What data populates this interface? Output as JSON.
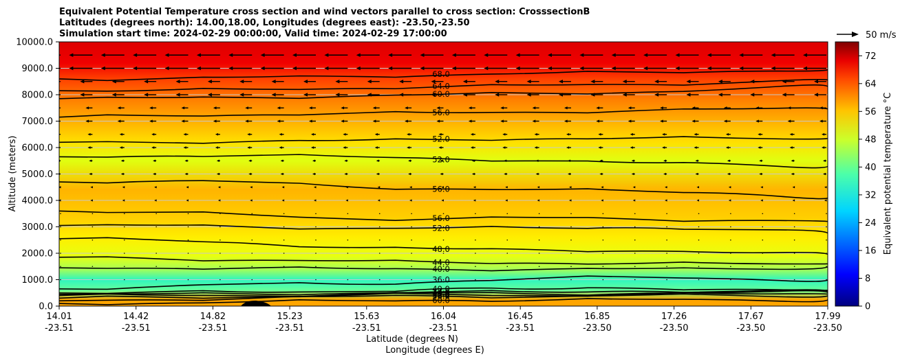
{
  "title_lines": [
    "Equivalent Potential Temperature cross section and wind vectors parallel to cross section: CrosssectionB",
    "Latitudes (degrees north): 14.00,18.00, Longitudes (degrees east): -23.50,-23.50",
    "Simulation start time: 2024-02-29 00:00:00, Valid time: 2024-02-29 17:00:00"
  ],
  "quiver_key_label": "50 m/s",
  "chart_data": {
    "type": "heatmap",
    "title": "Equivalent Potential Temperature cross section and wind vectors parallel to cross section: CrosssectionB",
    "xlabel": "Latitude (degrees N)",
    "xlabel2": "Longitude (degrees E)",
    "ylabel": "Altitude (meters)",
    "colorbar_label": "Equivalent potential temperature $^\\circ$C",
    "ylim": [
      0,
      10000
    ],
    "clim": [
      0,
      76
    ],
    "grid": "horizontal",
    "x_ticks": [
      {
        "lat": "14.01",
        "lon": "-23.51"
      },
      {
        "lat": "14.42",
        "lon": "-23.51"
      },
      {
        "lat": "14.82",
        "lon": "-23.51"
      },
      {
        "lat": "15.23",
        "lon": "-23.51"
      },
      {
        "lat": "15.63",
        "lon": "-23.51"
      },
      {
        "lat": "16.04",
        "lon": "-23.51"
      },
      {
        "lat": "16.45",
        "lon": "-23.51"
      },
      {
        "lat": "16.85",
        "lon": "-23.50"
      },
      {
        "lat": "17.26",
        "lon": "-23.50"
      },
      {
        "lat": "17.67",
        "lon": "-23.50"
      },
      {
        "lat": "17.99",
        "lon": "-23.50"
      }
    ],
    "y_ticks": [
      "0.0",
      "1000.0",
      "2000.0",
      "3000.0",
      "4000.0",
      "5000.0",
      "6000.0",
      "7000.0",
      "8000.0",
      "9000.0",
      "10000.0"
    ],
    "colorbar_ticks": [
      "0",
      "8",
      "16",
      "24",
      "32",
      "40",
      "48",
      "56",
      "64",
      "72"
    ],
    "contours": [
      {
        "level": "68.0",
        "y": [
          8600,
          8600,
          8650,
          8700,
          8750,
          8800,
          8850,
          8900,
          8950
        ]
      },
      {
        "level": "64.0",
        "y": [
          8150,
          8150,
          8200,
          8250,
          8300,
          8350,
          8400,
          8450,
          8550
        ]
      },
      {
        "level": "60.0",
        "y": [
          7850,
          7870,
          7900,
          7950,
          8000,
          8050,
          8100,
          8200,
          8300
        ]
      },
      {
        "level": "56.0",
        "y": [
          7150,
          7200,
          7250,
          7300,
          7300,
          7350,
          7400,
          7450,
          7450
        ]
      },
      {
        "level": "52.0",
        "y": [
          6200,
          6200,
          6250,
          6250,
          6300,
          6350,
          6350,
          6350,
          6350
        ]
      },
      {
        "level": "52.0",
        "y": [
          5650,
          5700,
          5700,
          5650,
          5600,
          5500,
          5400,
          5400,
          5300
        ]
      },
      {
        "level": "56.0",
        "y": [
          4700,
          4750,
          4700,
          4500,
          4450,
          4400,
          4350,
          4300,
          4100
        ]
      },
      {
        "level": "56.0",
        "y": [
          3600,
          3550,
          3450,
          3300,
          3300,
          3350,
          3300,
          3250,
          3200
        ]
      },
      {
        "level": "52.0",
        "y": [
          3050,
          3050,
          3000,
          2950,
          2950,
          2950,
          3000,
          2900,
          2750
        ]
      },
      {
        "level": "48.0",
        "y": [
          2550,
          2500,
          2400,
          2200,
          2150,
          2150,
          2100,
          2000,
          1950
        ]
      },
      {
        "level": "44.0",
        "y": [
          1850,
          1800,
          1750,
          1700,
          1650,
          1650,
          1600,
          1600,
          1600
        ]
      },
      {
        "level": "40.0",
        "y": [
          1450,
          1450,
          1450,
          1400,
          1400,
          1400,
          1400,
          1400,
          1500
        ]
      },
      {
        "level": "36.0",
        "y": [
          650,
          750,
          850,
          800,
          950,
          1050,
          1100,
          1050,
          1000
        ]
      },
      {
        "level": "40.0",
        "y": [
          500,
          550,
          500,
          550,
          700,
          600,
          700,
          650,
          600
        ]
      },
      {
        "level": "44.0",
        "y": [
          450,
          450,
          450,
          500,
          550,
          500,
          600,
          550,
          550
        ]
      },
      {
        "level": "48.0",
        "y": [
          400,
          400,
          400,
          450,
          500,
          450,
          500,
          500,
          500
        ]
      },
      {
        "level": "52.0",
        "y": [
          300,
          350,
          350,
          400,
          450,
          400,
          450,
          450,
          450
        ]
      },
      {
        "level": "56.0",
        "y": [
          200,
          250,
          300,
          350,
          400,
          350,
          400,
          400,
          400
        ]
      },
      {
        "level": "60.0",
        "y": [
          100,
          120,
          150,
          200,
          250,
          200,
          250,
          250,
          250
        ]
      }
    ]
  }
}
